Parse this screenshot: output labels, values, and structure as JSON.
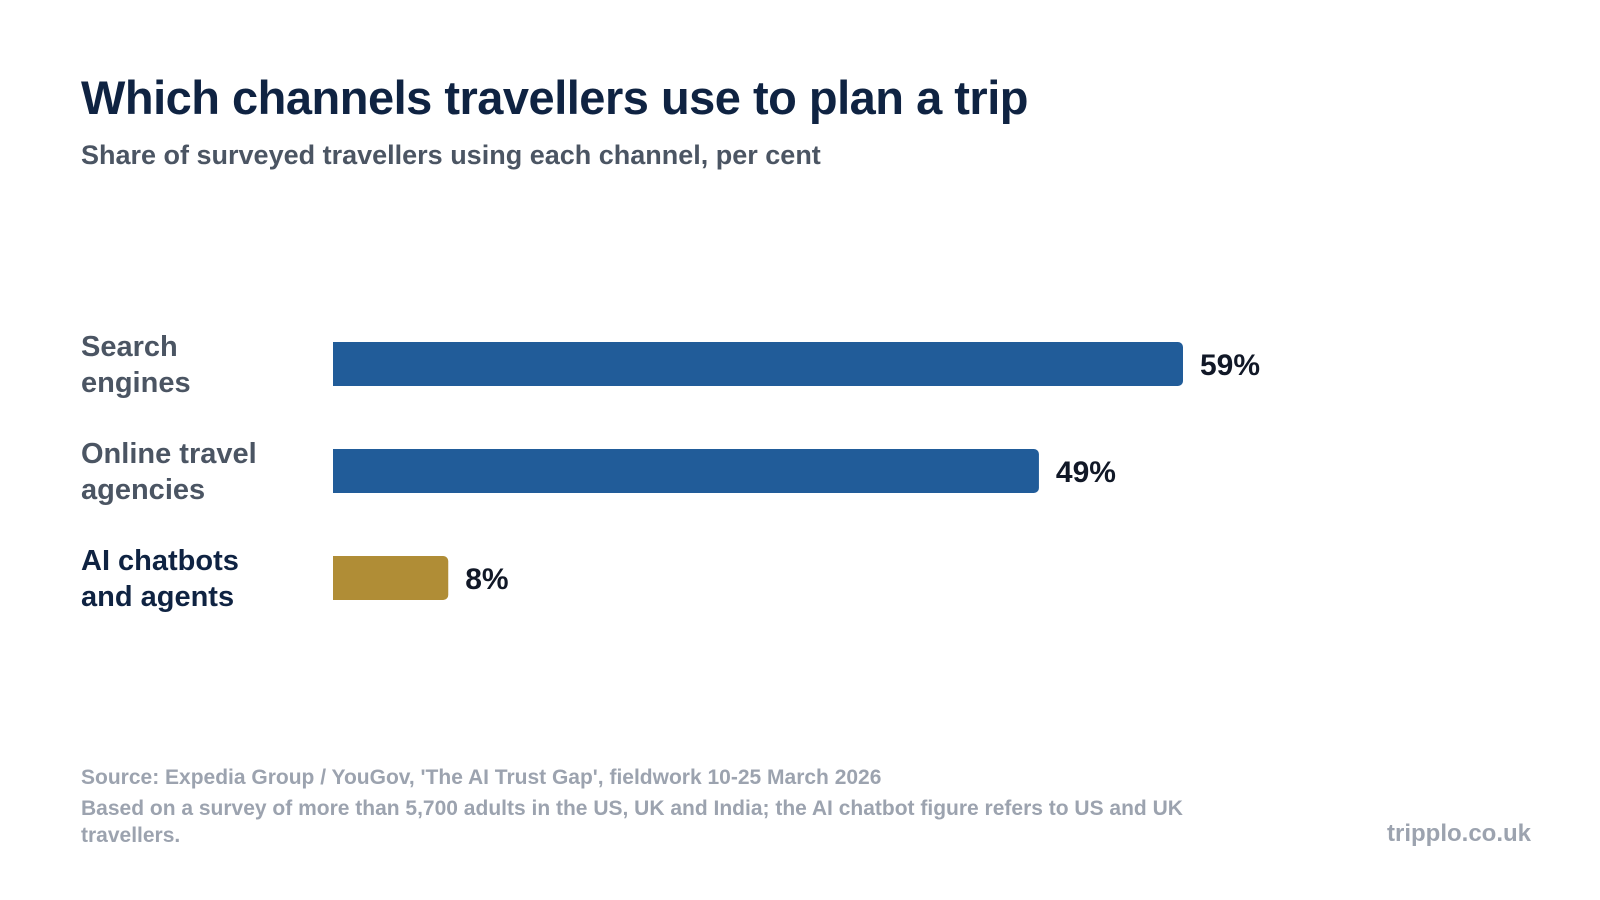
{
  "title": "Which channels travellers use to plan a trip",
  "subtitle": "Share of surveyed travellers using each channel, per cent",
  "colors": {
    "default_bar": "#215c99",
    "highlight_bar": "#b08d36",
    "default_label": "#4b5563",
    "highlight_label": "#0f2342"
  },
  "chart_data": {
    "type": "bar",
    "orientation": "horizontal",
    "categories": [
      [
        "Search",
        "engines"
      ],
      [
        "Online travel",
        "agencies"
      ],
      [
        "AI chatbots",
        "and agents"
      ]
    ],
    "values": [
      59,
      49,
      8
    ],
    "value_labels": [
      "59%",
      "49%",
      "8%"
    ],
    "highlight_index": 2,
    "xlim": [
      0,
      59
    ],
    "grid": false,
    "legend": "none"
  },
  "footer": {
    "source": "Source: Expedia Group / YouGov, 'The AI Trust Gap', fieldwork 10-25 March 2026",
    "note": "Based on a survey of more than 5,700 adults in the US, UK and India; the AI chatbot figure refers to US and UK travellers."
  },
  "brand": "tripplo.co.uk"
}
